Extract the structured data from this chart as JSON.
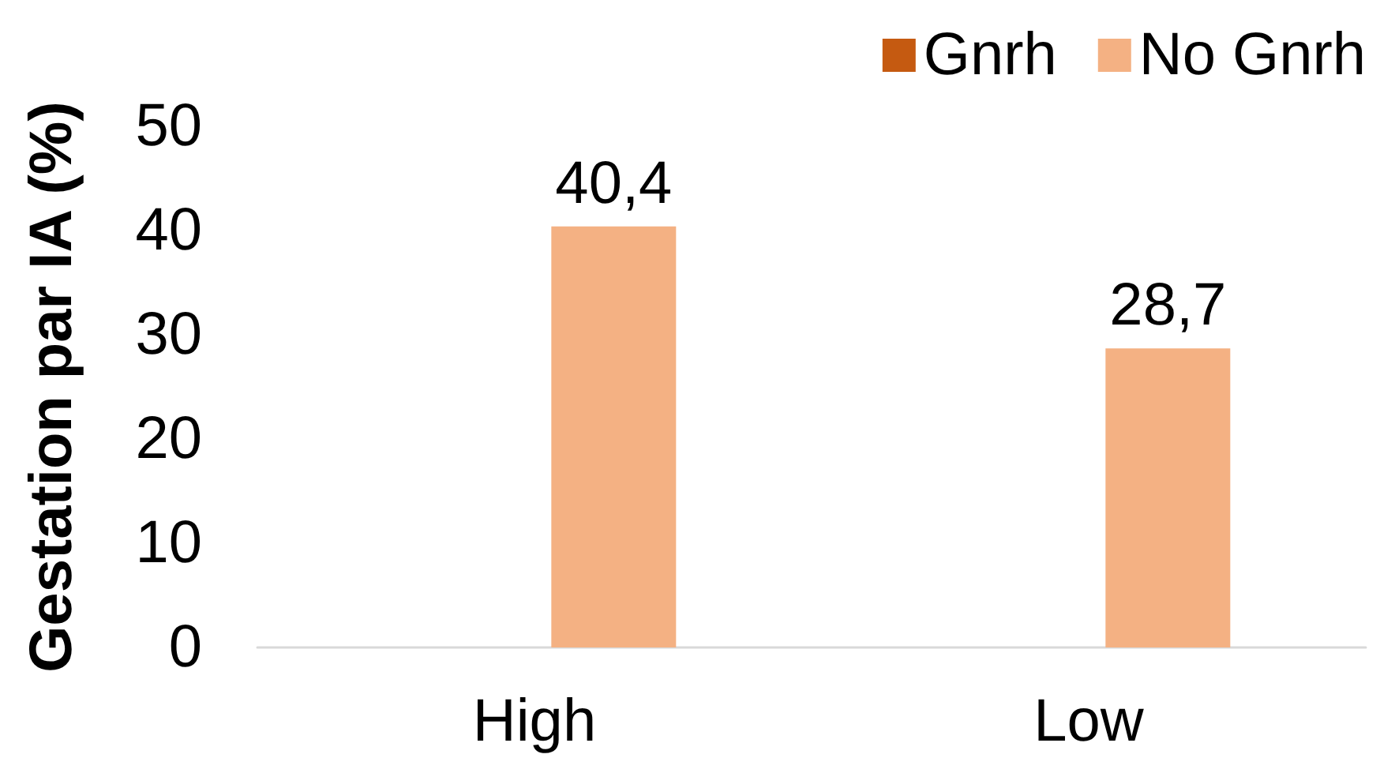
{
  "chart_data": {
    "type": "bar",
    "ylabel": "Gestation par IA (%)",
    "categories": [
      "High",
      "Low"
    ],
    "series": [
      {
        "name": "Gnrh",
        "color": "#c55a11",
        "values": [
          null,
          null
        ]
      },
      {
        "name": "No Gnrh",
        "color": "#f4b183",
        "values": [
          40.4,
          28.7
        ],
        "value_labels": [
          "40,4",
          "28,7"
        ]
      }
    ],
    "ylim": [
      0,
      50
    ],
    "yticks": [
      0,
      10,
      20,
      30,
      40,
      50
    ],
    "legend": "top right"
  }
}
